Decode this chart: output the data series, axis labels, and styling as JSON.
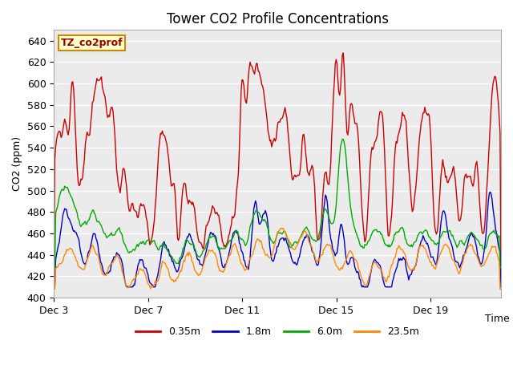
{
  "title": "Tower CO2 Profile Concentrations",
  "xlabel": "Time",
  "ylabel": "CO2 (ppm)",
  "ylim": [
    400,
    650
  ],
  "yticks": [
    400,
    420,
    440,
    460,
    480,
    500,
    520,
    540,
    560,
    580,
    600,
    620,
    640
  ],
  "series": [
    {
      "label": "0.35m",
      "color": "#cc0000",
      "lw": 1.0
    },
    {
      "label": "1.8m",
      "color": "#0000cc",
      "lw": 1.0
    },
    {
      "label": "6.0m",
      "color": "#00aa00",
      "lw": 1.0
    },
    {
      "label": "23.5m",
      "color": "#ff8800",
      "lw": 1.0
    }
  ],
  "xtick_labels": [
    "Dec 3",
    "Dec 7",
    "Dec 11",
    "Dec 15",
    "Dec 19"
  ],
  "xtick_positions": [
    0,
    4,
    8,
    12,
    16
  ],
  "n_points": 500,
  "background_color": "#ebebeb",
  "legend_box_color": "#ffffcc",
  "legend_box_edge": "#cc8800",
  "legend_text": "TZ_co2prof",
  "title_fontsize": 12,
  "label_fontsize": 9,
  "tick_fontsize": 9
}
